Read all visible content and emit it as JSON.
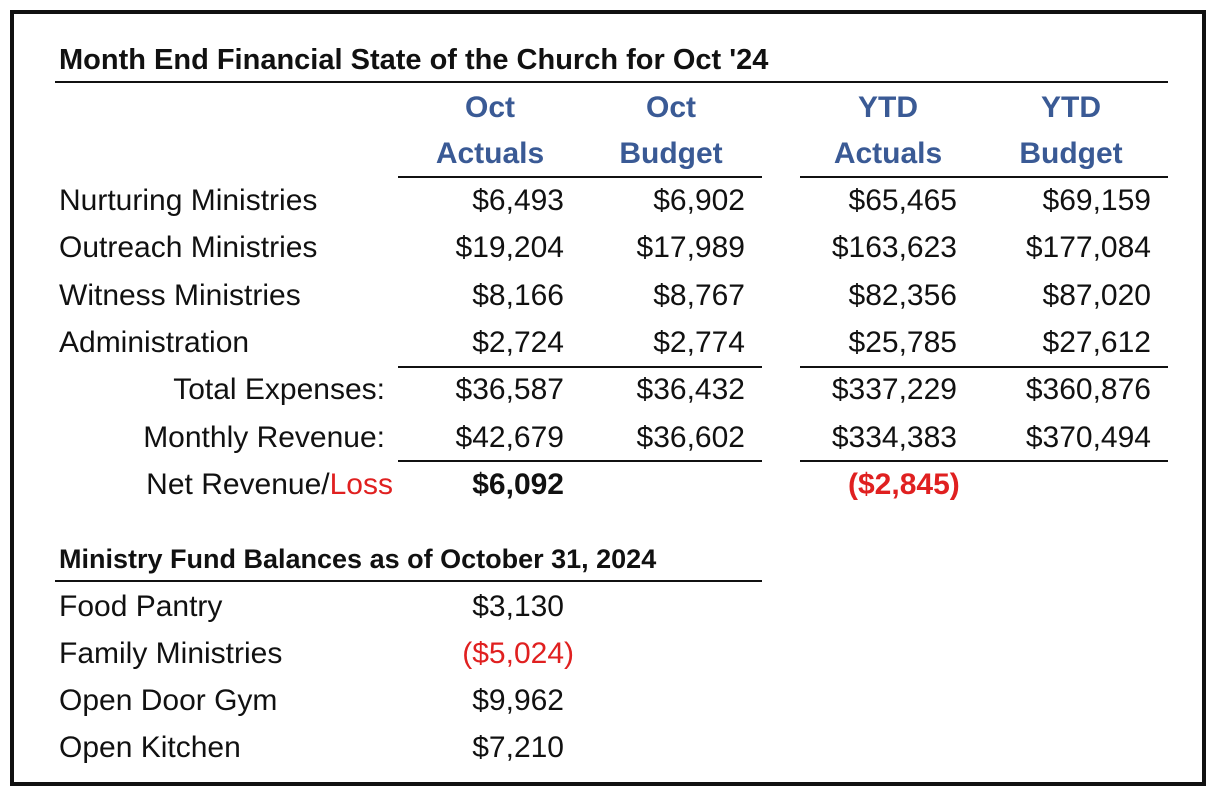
{
  "report": {
    "title": "Month End Financial State of the Church for Oct '24",
    "columns": [
      {
        "line1": "Oct",
        "line2": "Actuals"
      },
      {
        "line1": "Oct",
        "line2": "Budget"
      },
      {
        "line1": "YTD",
        "line2": "Actuals"
      },
      {
        "line1": "YTD",
        "line2": "Budget"
      }
    ],
    "rows": [
      {
        "label": "Nurturing Ministries",
        "values": [
          "$6,493",
          "$6,902",
          "$65,465",
          "$69,159"
        ]
      },
      {
        "label": "Outreach Ministries",
        "values": [
          "$19,204",
          "$17,989",
          "$163,623",
          "$177,084"
        ]
      },
      {
        "label": "Witness Ministries",
        "values": [
          "$8,166",
          "$8,767",
          "$82,356",
          "$87,020"
        ]
      },
      {
        "label": "Administration",
        "values": [
          "$2,724",
          "$2,774",
          "$25,785",
          "$27,612"
        ]
      }
    ],
    "totals": [
      {
        "label": "Total Expenses:",
        "values": [
          "$36,587",
          "$36,432",
          "$337,229",
          "$360,876"
        ]
      },
      {
        "label": "Monthly Revenue:",
        "values": [
          "$42,679",
          "$36,602",
          "$334,383",
          "$370,494"
        ]
      }
    ],
    "net": {
      "label_prefix": "Net Revenue/",
      "label_loss": "Loss",
      "oct_value": "$6,092",
      "ytd_value": "($2,845)"
    }
  },
  "funds": {
    "title": "Ministry Fund Balances as of October 31, 2024",
    "items": [
      {
        "label": "Food Pantry",
        "value": "$3,130",
        "negative": false
      },
      {
        "label": "Family Ministries",
        "value": "($5,024)",
        "negative": true
      },
      {
        "label": "Open Door Gym",
        "value": "$9,962",
        "negative": false
      },
      {
        "label": "Open Kitchen",
        "value": "$7,210",
        "negative": false
      }
    ]
  },
  "colors": {
    "header_blue": "#3a5a95",
    "loss_red": "#e02020",
    "frame": "#111111"
  }
}
